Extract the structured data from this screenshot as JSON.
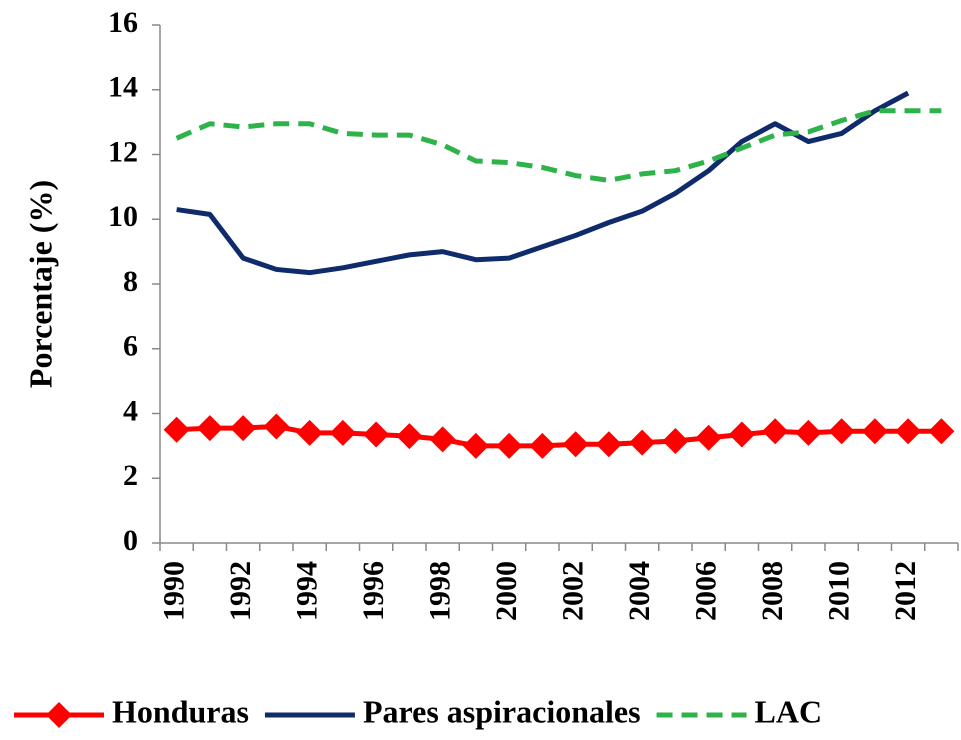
{
  "chart_data": {
    "type": "line",
    "y_label": "Porcentaje (%)",
    "categories": [
      "1990",
      null,
      "1992",
      null,
      "1994",
      null,
      "1996",
      null,
      "1998",
      null,
      "2000",
      null,
      "2002",
      null,
      "2004",
      null,
      "2006",
      null,
      "2008",
      null,
      "2010",
      null,
      "2012",
      null
    ],
    "series": [
      {
        "name": "Honduras",
        "color": "#ff0000",
        "marker": "diamond",
        "line_style": "solid",
        "values": [
          3.5,
          3.55,
          3.55,
          3.6,
          3.4,
          3.4,
          3.35,
          3.3,
          3.2,
          3.0,
          3.0,
          3.0,
          3.05,
          3.05,
          3.1,
          3.15,
          3.25,
          3.35,
          3.45,
          3.4,
          3.45,
          3.45,
          3.45,
          3.45
        ]
      },
      {
        "name": "Pares aspiracionales",
        "color": "#0f2b6b",
        "marker": "none",
        "line_style": "solid",
        "values": [
          10.3,
          10.15,
          8.8,
          8.45,
          8.35,
          8.5,
          8.7,
          8.9,
          9.0,
          8.75,
          8.8,
          9.15,
          9.5,
          9.9,
          10.25,
          10.8,
          11.5,
          12.4,
          12.95,
          12.4,
          12.65,
          13.35,
          13.9,
          null
        ]
      },
      {
        "name": "LAC",
        "color": "#2eb24a",
        "marker": "none",
        "line_style": "dashed",
        "values": [
          12.5,
          12.95,
          12.85,
          12.95,
          12.95,
          12.65,
          12.6,
          12.6,
          12.3,
          11.8,
          11.75,
          11.6,
          11.35,
          11.2,
          11.4,
          11.5,
          11.8,
          12.2,
          12.6,
          12.7,
          13.05,
          13.35,
          13.35,
          13.35
        ]
      }
    ],
    "ylim": [
      0,
      16
    ],
    "yticks": [
      0,
      2,
      4,
      6,
      8,
      10,
      12,
      14,
      16
    ],
    "grid": false,
    "legend": "bottom"
  }
}
